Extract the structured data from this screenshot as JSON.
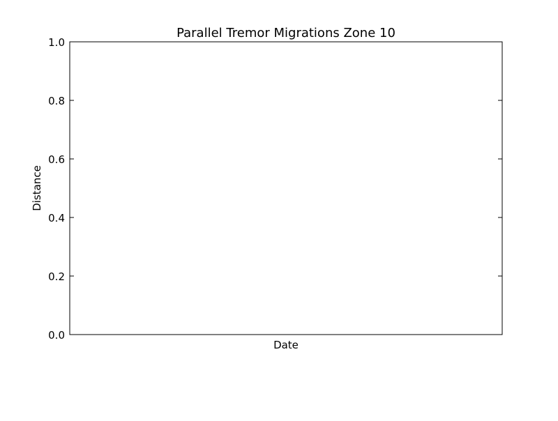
{
  "chart_data": {
    "type": "scatter",
    "title": "Parallel Tremor Migrations Zone 10",
    "xlabel": "Date",
    "ylabel": "Distance",
    "ylim": [
      0,
      1.0
    ],
    "yticks": [
      "0.0",
      "0.2",
      "0.4",
      "0.6",
      "0.8",
      "1.0"
    ],
    "xticks": [],
    "series": [],
    "grid": false,
    "legend": null
  },
  "colors": {
    "background": "#ffffff",
    "axes": "#000000"
  }
}
